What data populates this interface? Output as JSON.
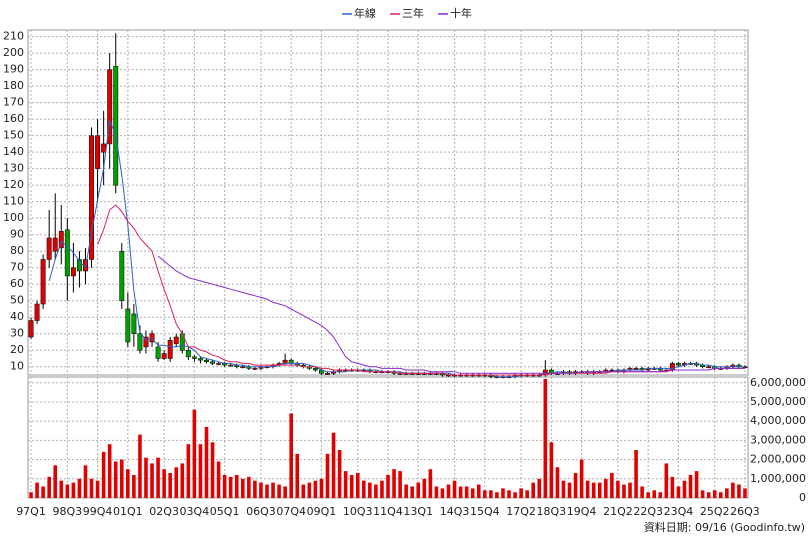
{
  "chart_data": {
    "type": "candlestick",
    "categories": [
      "97Q1",
      null,
      null,
      null,
      null,
      null,
      "98Q3",
      null,
      null,
      null,
      null,
      "99Q4",
      null,
      null,
      null,
      null,
      "01Q1",
      null,
      null,
      null,
      null,
      null,
      "02Q3",
      null,
      null,
      null,
      null,
      "03Q4",
      null,
      null,
      null,
      null,
      "05Q1",
      null,
      null,
      null,
      null,
      null,
      "06Q3",
      null,
      null,
      null,
      null,
      "07Q4",
      null,
      null,
      null,
      null,
      "09Q1",
      null,
      null,
      null,
      null,
      null,
      "10Q3",
      null,
      null,
      null,
      null,
      "11Q4",
      null,
      null,
      null,
      null,
      "13Q1",
      null,
      null,
      null,
      null,
      null,
      "14Q3",
      null,
      null,
      null,
      null,
      "15Q4",
      null,
      null,
      null,
      null,
      null,
      "17Q2",
      null,
      null,
      null,
      null,
      "18Q3",
      null,
      null,
      null,
      null,
      "19Q4",
      null,
      null,
      null,
      null,
      null,
      "21Q2",
      null,
      null,
      null,
      null,
      "22Q3",
      null,
      null,
      null,
      null,
      "23Q4",
      null,
      null,
      null,
      null,
      null,
      "25Q2",
      null,
      null,
      null,
      null,
      "26Q3"
    ],
    "open": [
      28,
      38,
      48,
      75,
      80,
      82,
      93,
      65,
      75,
      68,
      75,
      130,
      140,
      145,
      192,
      80,
      45,
      42,
      30,
      22,
      25,
      22,
      15,
      15,
      24,
      30,
      20,
      16,
      15,
      14,
      13,
      12,
      12,
      11,
      11,
      10,
      10,
      9,
      9,
      10,
      10,
      11,
      12,
      14,
      12,
      11,
      10,
      9,
      8,
      6,
      6,
      7,
      8,
      8,
      8,
      8,
      8,
      7,
      7,
      7,
      7,
      6,
      6,
      6,
      6,
      6,
      6,
      6,
      6,
      5,
      5,
      5,
      5,
      5,
      5,
      5,
      5,
      4,
      4,
      4,
      4,
      5,
      5,
      5,
      5,
      5,
      8,
      6,
      6,
      7,
      6,
      7,
      7,
      6,
      7,
      7,
      8,
      8,
      7,
      8,
      9,
      9,
      8,
      9,
      9,
      8,
      8,
      12,
      11,
      12,
      12,
      11,
      10,
      10,
      9,
      9,
      10,
      11,
      10
    ],
    "high": [
      40,
      50,
      78,
      105,
      115,
      108,
      100,
      85,
      80,
      82,
      155,
      160,
      165,
      200,
      212,
      85,
      55,
      48,
      35,
      32,
      32,
      25,
      20,
      28,
      30,
      32,
      22,
      17,
      16,
      15,
      14,
      13,
      13,
      12,
      12,
      11,
      11,
      10,
      11,
      11,
      12,
      13,
      18,
      15,
      13,
      12,
      11,
      10,
      9,
      7,
      8,
      9,
      9,
      9,
      9,
      9,
      9,
      8,
      8,
      8,
      8,
      7,
      7,
      7,
      7,
      7,
      7,
      7,
      7,
      6,
      6,
      6,
      6,
      6,
      6,
      6,
      6,
      5,
      5,
      5,
      6,
      6,
      6,
      6,
      6,
      14,
      9,
      7,
      8,
      8,
      8,
      8,
      8,
      8,
      8,
      9,
      9,
      9,
      9,
      10,
      10,
      10,
      10,
      10,
      10,
      9,
      13,
      13,
      13,
      13,
      13,
      12,
      11,
      11,
      10,
      11,
      12,
      12,
      11
    ],
    "low": [
      27,
      36,
      45,
      70,
      75,
      72,
      50,
      55,
      58,
      60,
      70,
      110,
      120,
      130,
      115,
      45,
      22,
      22,
      18,
      18,
      22,
      13,
      14,
      13,
      22,
      18,
      14,
      13,
      12,
      12,
      11,
      11,
      10,
      10,
      9,
      9,
      8,
      8,
      8,
      9,
      9,
      10,
      11,
      11,
      10,
      9,
      8,
      7,
      5,
      5,
      5,
      6,
      7,
      7,
      7,
      7,
      6,
      6,
      6,
      6,
      5,
      5,
      5,
      5,
      5,
      5,
      5,
      5,
      4,
      4,
      4,
      4,
      4,
      4,
      4,
      4,
      3,
      3,
      3,
      3,
      3,
      4,
      4,
      4,
      4,
      4,
      5,
      5,
      5,
      5,
      5,
      6,
      5,
      5,
      6,
      6,
      7,
      6,
      6,
      7,
      8,
      7,
      7,
      8,
      7,
      7,
      7,
      10,
      10,
      11,
      10,
      9,
      9,
      8,
      8,
      8,
      9,
      9,
      9
    ],
    "close": [
      38,
      48,
      75,
      88,
      88,
      92,
      65,
      70,
      68,
      75,
      150,
      150,
      145,
      190,
      120,
      50,
      25,
      30,
      20,
      28,
      30,
      15,
      18,
      26,
      28,
      20,
      16,
      15,
      14,
      13,
      12,
      12,
      11,
      11,
      10,
      10,
      9,
      9,
      10,
      10,
      11,
      12,
      14,
      12,
      11,
      10,
      9,
      8,
      6,
      6,
      7,
      8,
      8,
      8,
      8,
      8,
      7,
      7,
      7,
      7,
      6,
      6,
      6,
      6,
      6,
      6,
      6,
      6,
      5,
      5,
      5,
      5,
      5,
      5,
      5,
      5,
      4,
      4,
      4,
      4,
      5,
      5,
      5,
      5,
      5,
      8,
      6,
      6,
      7,
      6,
      7,
      7,
      6,
      7,
      7,
      8,
      8,
      7,
      8,
      9,
      9,
      8,
      9,
      9,
      8,
      8,
      12,
      11,
      12,
      12,
      11,
      10,
      10,
      9,
      9,
      10,
      11,
      10,
      10
    ],
    "up_color": "#e00000",
    "down_color": "#00a000",
    "series": [
      {
        "name": "年線",
        "color": "#2a62c9",
        "values": [
          null,
          null,
          null,
          62,
          75,
          86,
          83,
          79,
          74,
          70,
          91,
          111,
          130,
          159,
          151,
          126,
          96,
          56,
          31,
          26,
          27,
          23,
          23,
          22,
          22,
          23,
          22,
          20,
          16,
          15,
          14,
          13,
          12,
          12,
          11,
          11,
          10,
          10,
          10,
          10,
          10,
          11,
          12,
          12,
          12,
          12,
          11,
          10,
          8,
          7,
          7,
          7,
          7,
          8,
          8,
          8,
          8,
          8,
          7,
          7,
          7,
          7,
          6,
          6,
          6,
          6,
          6,
          6,
          6,
          6,
          5,
          5,
          5,
          5,
          5,
          5,
          5,
          4,
          4,
          4,
          4,
          5,
          5,
          5,
          5,
          6,
          6,
          7,
          7,
          6,
          6,
          7,
          7,
          7,
          7,
          7,
          7,
          8,
          8,
          8,
          8,
          8,
          9,
          9,
          9,
          9,
          9,
          10,
          11,
          12,
          12,
          11,
          11,
          10,
          10,
          10,
          10,
          10,
          10
        ]
      },
      {
        "name": "三年",
        "color": "#e0205a",
        "values": [
          null,
          null,
          null,
          null,
          null,
          null,
          null,
          null,
          null,
          null,
          null,
          84,
          93,
          105,
          108,
          104,
          98,
          94,
          88,
          84,
          80,
          68,
          57,
          47,
          36,
          30,
          22,
          22,
          20,
          19,
          17,
          16,
          14,
          13,
          13,
          12,
          12,
          11,
          11,
          11,
          11,
          11,
          11,
          11,
          11,
          10,
          10,
          10,
          9,
          9,
          8,
          8,
          8,
          8,
          8,
          7,
          7,
          7,
          7,
          7,
          7,
          6,
          6,
          6,
          6,
          6,
          6,
          6,
          6,
          5,
          5,
          5,
          5,
          5,
          5,
          5,
          5,
          5,
          5,
          5,
          5,
          5,
          5,
          5,
          5,
          5,
          6,
          6,
          6,
          6,
          6,
          6,
          6,
          6,
          6,
          6,
          7,
          7,
          7,
          7,
          7,
          7,
          7,
          7,
          7,
          7,
          8,
          8,
          8,
          8,
          8,
          8,
          8,
          9,
          9,
          9,
          9,
          9,
          9
        ]
      },
      {
        "name": "十年",
        "color": "#8a2bc9",
        "values": [
          null,
          null,
          null,
          null,
          null,
          null,
          null,
          null,
          null,
          null,
          null,
          null,
          null,
          null,
          null,
          null,
          null,
          null,
          null,
          null,
          null,
          77,
          74,
          71,
          68,
          66,
          64,
          63,
          62,
          61,
          60,
          59,
          58,
          57,
          56,
          55,
          54,
          53,
          52,
          51,
          49,
          48,
          47,
          45,
          43,
          41,
          39,
          37,
          35,
          32,
          28,
          22,
          16,
          13,
          12,
          11,
          10,
          10,
          9,
          9,
          9,
          9,
          8,
          8,
          8,
          8,
          7,
          7,
          7,
          7,
          7,
          6,
          6,
          6,
          6,
          6,
          6,
          6,
          6,
          6,
          6,
          6,
          6,
          6,
          6,
          6,
          6,
          6,
          6,
          6,
          6,
          7,
          7,
          7,
          7,
          7,
          7,
          7,
          7,
          7,
          7,
          7,
          7,
          7,
          7,
          8,
          8,
          8,
          8,
          8,
          8,
          8,
          8,
          9,
          9,
          9,
          9,
          9,
          9
        ]
      }
    ],
    "volume": {
      "color": "#e00000",
      "values": [
        300000,
        800000,
        600000,
        1100000,
        1700000,
        900000,
        700000,
        800000,
        1000000,
        1700000,
        1000000,
        900000,
        2400000,
        2800000,
        1900000,
        2000000,
        1500000,
        1200000,
        3300000,
        2100000,
        1800000,
        2100000,
        1500000,
        1300000,
        1600000,
        1800000,
        2800000,
        4600000,
        2800000,
        3700000,
        2900000,
        1900000,
        1200000,
        1100000,
        1200000,
        1000000,
        1100000,
        900000,
        800000,
        700000,
        800000,
        700000,
        600000,
        4400000,
        2300000,
        700000,
        800000,
        900000,
        1000000,
        2300000,
        3400000,
        2500000,
        1400000,
        1200000,
        1300000,
        900000,
        800000,
        700000,
        900000,
        1200000,
        1500000,
        1400000,
        700000,
        600000,
        800000,
        1000000,
        1500000,
        600000,
        500000,
        700000,
        900000,
        600000,
        600000,
        500000,
        700000,
        400000,
        400000,
        300000,
        500000,
        400000,
        300000,
        500000,
        400000,
        800000,
        1000000,
        6200000,
        2900000,
        1600000,
        900000,
        800000,
        1300000,
        2000000,
        900000,
        800000,
        800000,
        1000000,
        1300000,
        900000,
        700000,
        800000,
        2500000,
        600000,
        300000,
        400000,
        300000,
        1800000,
        1100000,
        600000,
        900000,
        1200000,
        1400000,
        400000,
        300000,
        400000,
        300000,
        500000,
        800000,
        700000,
        500000
      ]
    },
    "ylim": [
      5,
      214
    ],
    "yticks": [
      10,
      20,
      30,
      40,
      50,
      60,
      70,
      80,
      90,
      100,
      110,
      120,
      130,
      140,
      150,
      160,
      170,
      180,
      190,
      200,
      210
    ],
    "y2lim": [
      0,
      6300000
    ],
    "y2ticks": [
      0,
      {
        "value": 1000000,
        "label": "1,000,000"
      },
      {
        "value": 2000000,
        "label": "2,000,000"
      },
      {
        "value": 3000000,
        "label": "3,000,000"
      },
      {
        "value": 4000000,
        "label": "4,000,000"
      },
      {
        "value": 5000000,
        "label": "5,000,000"
      },
      {
        "value": 6000000,
        "label": "6,000,000"
      }
    ],
    "grid": true,
    "legend": "top",
    "footer": "資料日期: 09/16 (Goodinfo.tw)"
  }
}
